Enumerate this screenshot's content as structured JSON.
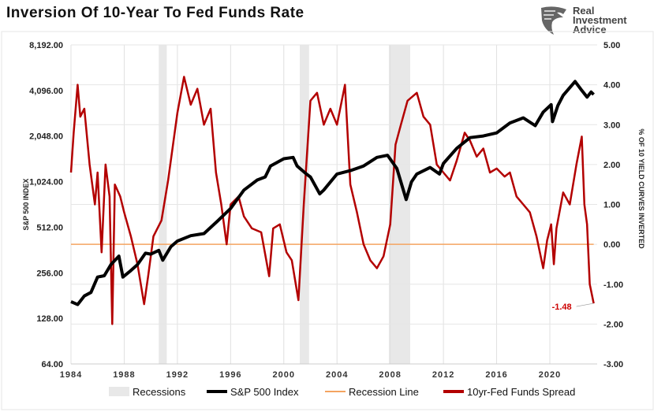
{
  "title": "Inversion Of 10-Year To Fed Funds Rate",
  "logo": {
    "lines": [
      "Real",
      "Investment",
      "Advice"
    ]
  },
  "chart_data": {
    "type": "line",
    "title": "Inversion Of 10-Year To Fed Funds Rate",
    "xlabel": "",
    "ylabel_left": "S&P 500 INDEX",
    "ylabel_right": "% OF 10 YIELD CURVES INVERTED",
    "xlim": [
      1984,
      2024
    ],
    "x_ticks": [
      "1984",
      "1988",
      "1992",
      "1996",
      "2000",
      "2004",
      "2008",
      "2012",
      "2016",
      "2020"
    ],
    "ylim_left": [
      64,
      8192
    ],
    "left_scale": "log2",
    "y_ticks_left": [
      "64.00",
      "128.00",
      "256.00",
      "512.00",
      "1,024.00",
      "2,048.00",
      "4,096.00",
      "8,192.00"
    ],
    "ylim_right": [
      -3,
      5
    ],
    "y_ticks_right": [
      "-3.00",
      "-2.00",
      "-1.00",
      "0.00",
      "1.00",
      "2.00",
      "3.00",
      "4.00",
      "5.00"
    ],
    "grid": "vertical",
    "legend_placement": "bottom",
    "recessions": [
      [
        1990.6,
        1991.2
      ],
      [
        2001.2,
        2001.9
      ],
      [
        2007.9,
        2009.5
      ]
    ],
    "series": [
      {
        "name": "S&P 500 Index",
        "axis": "left",
        "color": "#000000",
        "x": [
          1984,
          1984.5,
          1985,
          1985.5,
          1986,
          1986.5,
          1987,
          1987.6,
          1987.9,
          1988.5,
          1989,
          1989.6,
          1990,
          1990.6,
          1990.9,
          1991.5,
          1992,
          1993,
          1994,
          1995,
          1996,
          1997,
          1998,
          1998.6,
          1999,
          2000,
          2000.7,
          2001,
          2001.7,
          2002,
          2002.7,
          2003,
          2004,
          2005,
          2006,
          2007,
          2007.8,
          2008.5,
          2009.2,
          2009.6,
          2010,
          2011,
          2011.7,
          2012,
          2013,
          2014,
          2015,
          2016,
          2017,
          2018,
          2018.9,
          2019.5,
          2020.1,
          2020.2,
          2020.6,
          2021,
          2021.9,
          2022.4,
          2022.8,
          2023.1,
          2023.3
        ],
        "y": [
          165,
          158,
          180,
          190,
          240,
          245,
          290,
          330,
          240,
          265,
          290,
          345,
          340,
          360,
          310,
          380,
          415,
          450,
          465,
          560,
          680,
          900,
          1050,
          1100,
          1300,
          1450,
          1480,
          1300,
          1150,
          1100,
          850,
          900,
          1150,
          1210,
          1300,
          1480,
          1530,
          1250,
          780,
          1020,
          1150,
          1270,
          1150,
          1350,
          1700,
          2000,
          2050,
          2150,
          2500,
          2700,
          2400,
          2950,
          3300,
          2550,
          3250,
          3800,
          4700,
          4100,
          3700,
          4000,
          3850
        ]
      },
      {
        "name": "Recession Line",
        "axis": "right",
        "color": "#f4a460",
        "x": [
          1984,
          2023.3
        ],
        "y": [
          0,
          0
        ]
      },
      {
        "name": "10yr-Fed Funds Spread",
        "axis": "right",
        "color": "#b30000",
        "x": [
          1984,
          1984.2,
          1984.5,
          1984.7,
          1985,
          1985.4,
          1985.8,
          1986,
          1986.3,
          1986.6,
          1986.9,
          1987.1,
          1987.3,
          1987.7,
          1988,
          1988.5,
          1989,
          1989.5,
          1989.8,
          1990.2,
          1990.8,
          1991.3,
          1992,
          1992.5,
          1993,
          1993.5,
          1994,
          1994.5,
          1994.9,
          1995.3,
          1995.7,
          1996,
          1996.6,
          1997,
          1997.6,
          1998.3,
          1998.9,
          1999.2,
          1999.7,
          2000.2,
          2000.6,
          2001.1,
          2001.5,
          2002,
          2002.5,
          2003,
          2003.5,
          2004,
          2004.6,
          2005,
          2005.5,
          2006,
          2006.5,
          2007,
          2007.5,
          2008,
          2008.4,
          2008.8,
          2009.3,
          2010,
          2010.5,
          2011,
          2011.5,
          2012,
          2012.5,
          2013,
          2013.6,
          2014,
          2014.5,
          2015,
          2015.5,
          2016,
          2016.6,
          2017,
          2017.5,
          2018,
          2018.5,
          2019,
          2019.5,
          2019.8,
          2020.1,
          2020.3,
          2020.5,
          2021,
          2021.5,
          2022,
          2022.4,
          2022.6,
          2022.8,
          2023,
          2023.3
        ],
        "y": [
          1.8,
          2.8,
          4.0,
          3.2,
          3.4,
          2.0,
          1.0,
          1.8,
          -0.2,
          2.0,
          1.2,
          -2.0,
          1.5,
          1.2,
          0.8,
          0.2,
          -0.5,
          -1.5,
          -0.8,
          0.2,
          0.6,
          1.6,
          3.3,
          4.2,
          3.5,
          3.9,
          3.0,
          3.4,
          1.8,
          1.0,
          0.0,
          1.0,
          1.2,
          0.7,
          0.4,
          0.3,
          -0.8,
          0.4,
          0.5,
          -0.2,
          -0.4,
          -1.4,
          1.0,
          3.6,
          3.8,
          3.0,
          3.4,
          3.0,
          4.0,
          1.5,
          0.8,
          0.0,
          -0.4,
          -0.6,
          -0.3,
          0.5,
          2.5,
          3.0,
          3.6,
          3.8,
          3.2,
          3.0,
          2.0,
          1.8,
          1.6,
          2.1,
          2.8,
          2.6,
          2.2,
          2.4,
          1.8,
          1.9,
          1.7,
          1.8,
          1.2,
          1.0,
          0.8,
          0.2,
          -0.6,
          0.1,
          0.5,
          -0.5,
          0.4,
          1.3,
          1.0,
          2.0,
          2.7,
          1.0,
          0.5,
          -1.0,
          -1.48
        ]
      }
    ],
    "annotations": [
      {
        "text": "-1.48",
        "x": 2023.3,
        "y": -1.48,
        "color": "#cc0000"
      }
    ]
  },
  "legend": [
    {
      "label": "Recessions",
      "kind": "box",
      "color": "#e8e8e8"
    },
    {
      "label": "S&P 500 Index",
      "kind": "line",
      "color": "#000000"
    },
    {
      "label": "Recession Line",
      "kind": "line",
      "color": "#f4a460"
    },
    {
      "label": "10yr-Fed Funds Spread",
      "kind": "line",
      "color": "#b30000"
    }
  ]
}
